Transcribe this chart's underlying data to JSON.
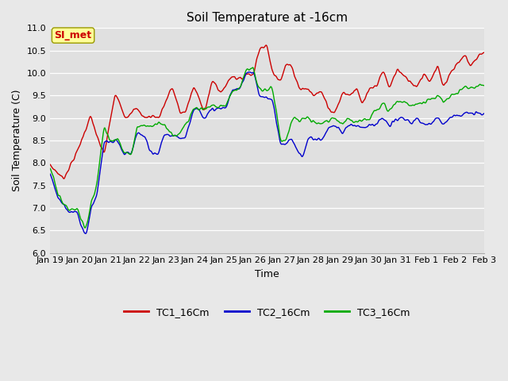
{
  "title": "Soil Temperature at -16cm",
  "xlabel": "Time",
  "ylabel": "Soil Temperature (C)",
  "ylim": [
    6.0,
    11.0
  ],
  "yticks": [
    6.0,
    6.5,
    7.0,
    7.5,
    8.0,
    8.5,
    9.0,
    9.5,
    10.0,
    10.5,
    11.0
  ],
  "xtick_labels": [
    "Jan 19",
    "Jan 20",
    "Jan 21",
    "Jan 22",
    "Jan 23",
    "Jan 24",
    "Jan 25",
    "Jan 26",
    "Jan 27",
    "Jan 28",
    "Jan 29",
    "Jan 30",
    "Jan 31",
    "Feb 1",
    "Feb 2",
    "Feb 3"
  ],
  "line_colors": {
    "TC1": "#cc0000",
    "TC2": "#0000cc",
    "TC3": "#00aa00"
  },
  "line_width": 1.0,
  "bg_color": "#e8e8e8",
  "plot_bg_color": "#e0e0e0",
  "legend_label_TC1": "TC1_16Cm",
  "legend_label_TC2": "TC2_16Cm",
  "legend_label_TC3": "TC3_16Cm",
  "annotation_text": "SI_met",
  "annotation_bg": "#ffff99",
  "annotation_border": "#999900",
  "title_fontsize": 11,
  "axis_fontsize": 9,
  "tick_fontsize": 8,
  "legend_fontsize": 9
}
